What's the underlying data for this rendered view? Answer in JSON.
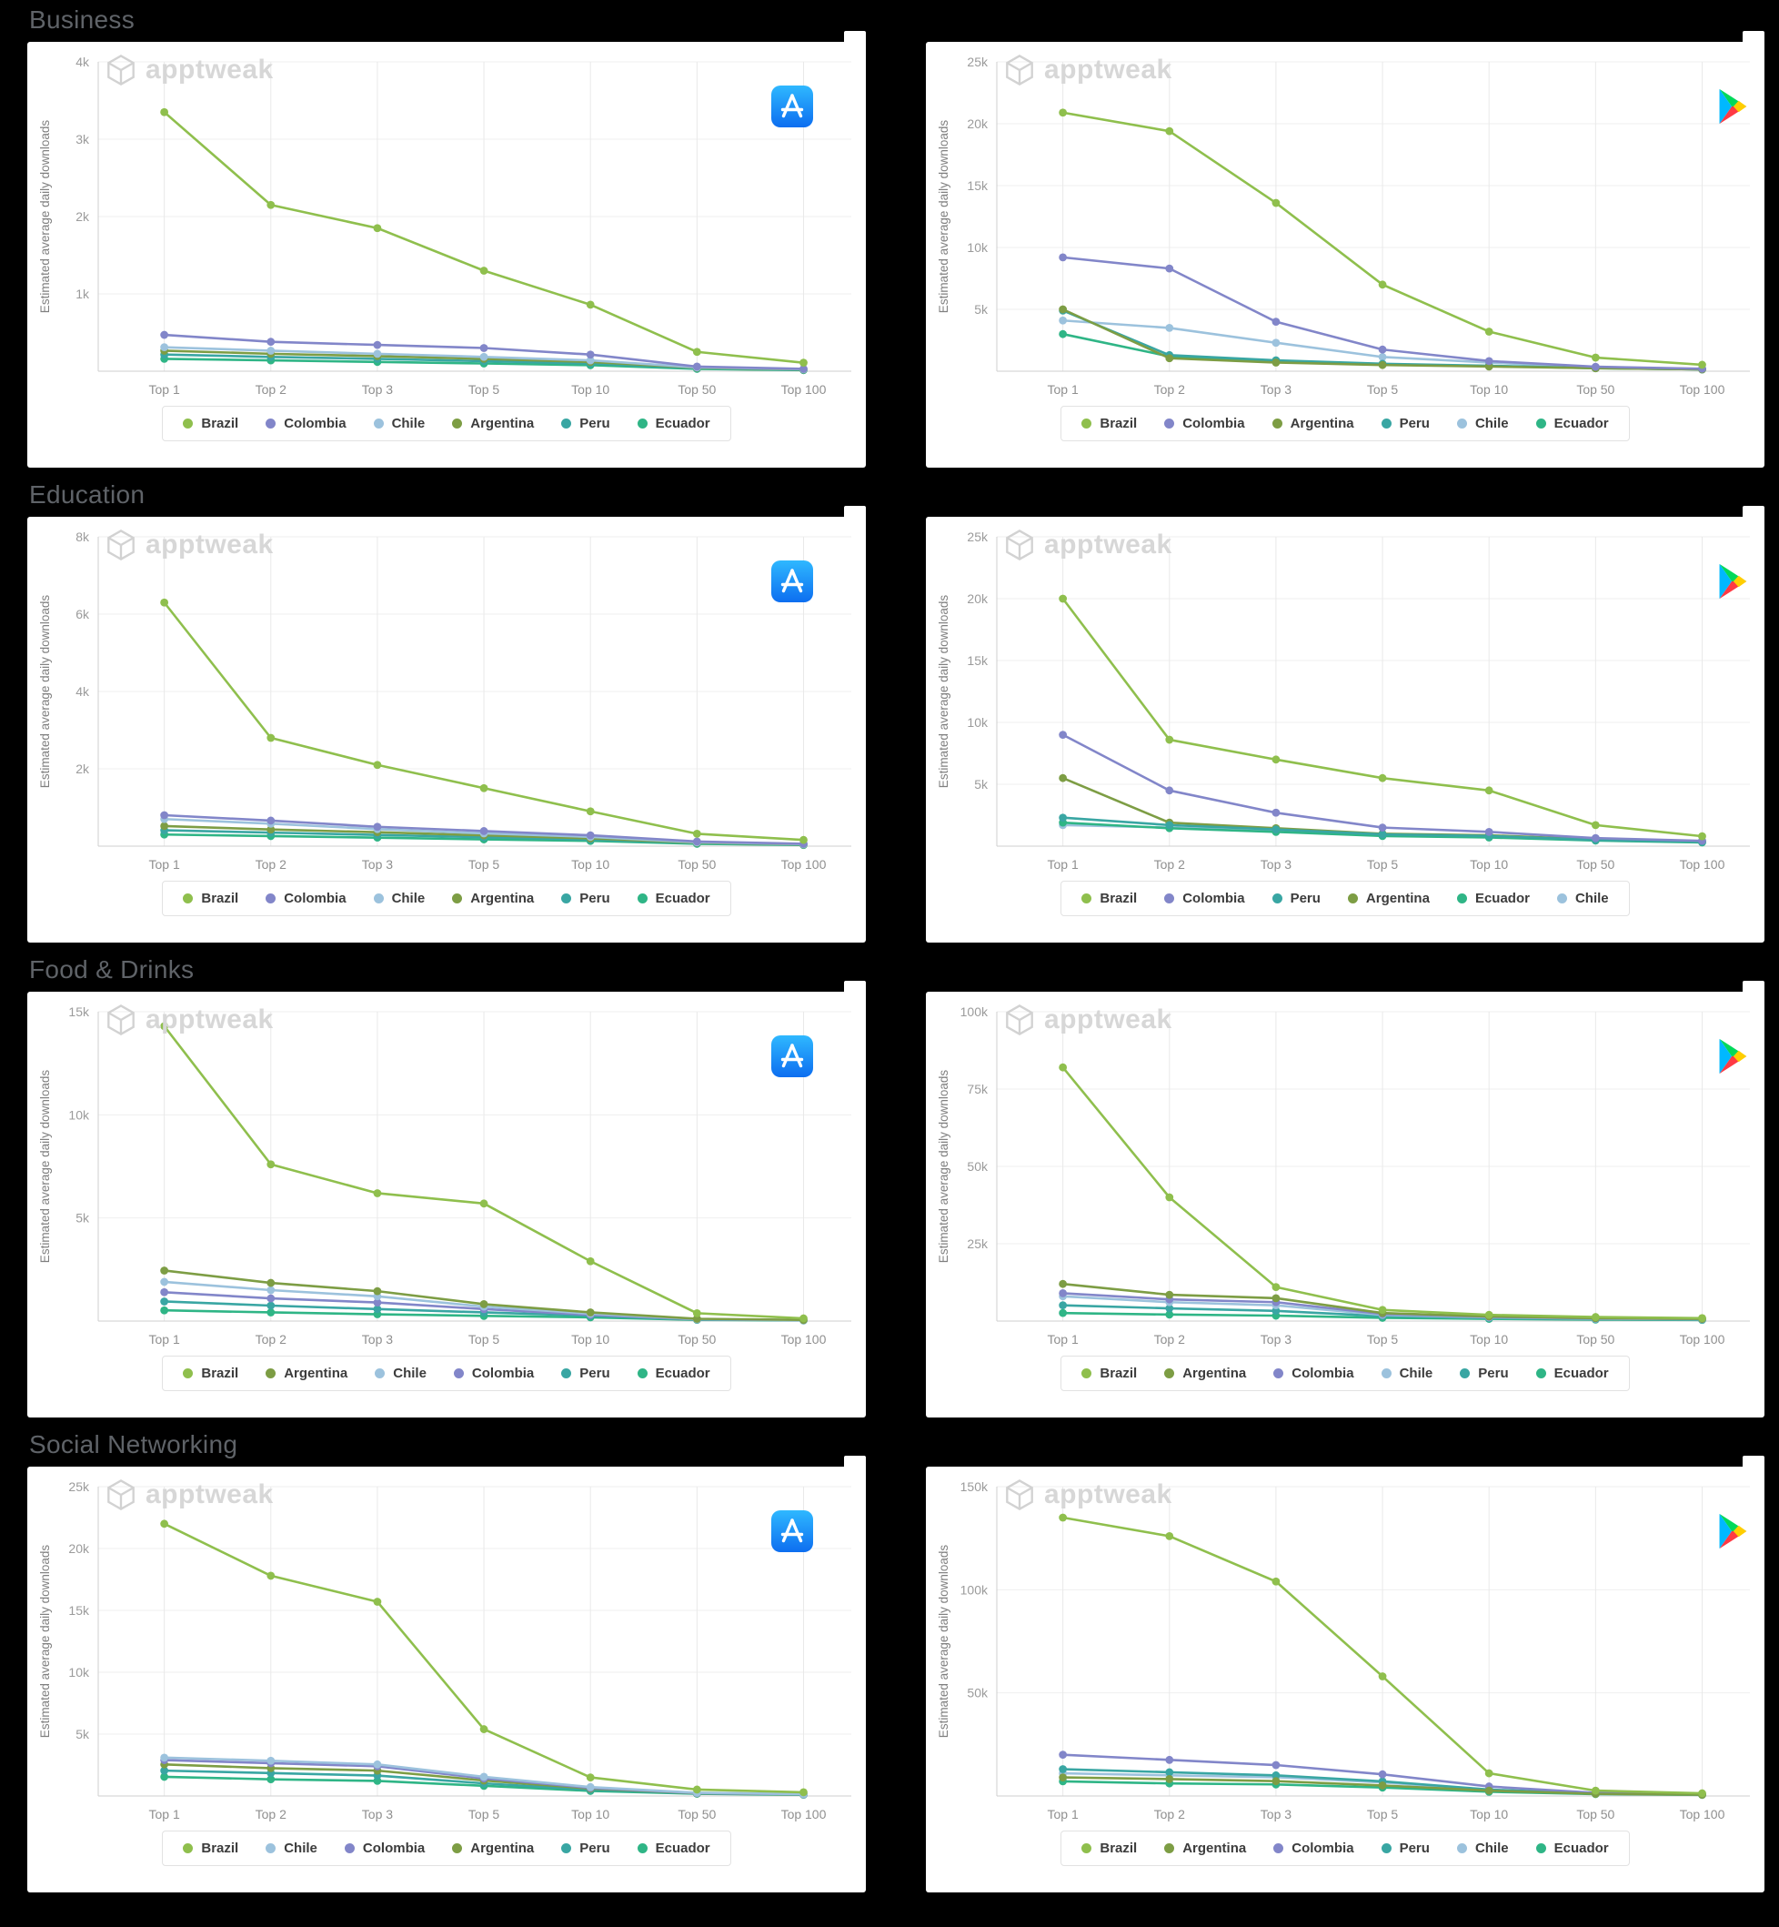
{
  "watermark": "apptweak",
  "ylabel": "Estimated average daily downloads",
  "categories": [
    "Top 1",
    "Top 2",
    "Top 3",
    "Top 5",
    "Top 10",
    "Top 50",
    "Top 100"
  ],
  "colors": {
    "Brazil": "#8fbf4d",
    "Colombia": "#8286c9",
    "Chile": "#9cc2dd",
    "Argentina": "#7d9d44",
    "Peru": "#39a6a3",
    "Ecuador": "#2fb586"
  },
  "sections": [
    {
      "title": "Business",
      "chart_indexes": [
        0,
        1
      ]
    },
    {
      "title": "Education",
      "chart_indexes": [
        2,
        3
      ]
    },
    {
      "title": "Food & Drinks",
      "chart_indexes": [
        4,
        5
      ]
    },
    {
      "title": "Social Networking",
      "chart_indexes": [
        6,
        7
      ]
    }
  ],
  "chart_data": [
    {
      "type": "line",
      "section": "Business",
      "store": "App Store",
      "title": "",
      "xlabel": "",
      "ylabel": "Estimated average daily downloads",
      "categories": [
        "Top 1",
        "Top 2",
        "Top 3",
        "Top 5",
        "Top 10",
        "Top 50",
        "Top 100"
      ],
      "ylim": [
        0,
        4000
      ],
      "ytick_values": [
        1000,
        2000,
        3000,
        4000
      ],
      "ytick_labels": [
        "1k",
        "2k",
        "3k",
        "4k"
      ],
      "grid": true,
      "legend_position": "bottom",
      "legend": [
        "Brazil",
        "Colombia",
        "Chile",
        "Argentina",
        "Peru",
        "Ecuador"
      ],
      "series": [
        {
          "name": "Brazil",
          "values": [
            3350,
            2150,
            1850,
            1300,
            860,
            250,
            110
          ]
        },
        {
          "name": "Colombia",
          "values": [
            470,
            380,
            340,
            300,
            215,
            60,
            30
          ]
        },
        {
          "name": "Chile",
          "values": [
            310,
            265,
            225,
            185,
            140,
            50,
            25
          ]
        },
        {
          "name": "Argentina",
          "values": [
            265,
            225,
            195,
            160,
            120,
            45,
            22
          ]
        },
        {
          "name": "Peru",
          "values": [
            215,
            185,
            160,
            130,
            100,
            40,
            18
          ]
        },
        {
          "name": "Ecuador",
          "values": [
            160,
            140,
            120,
            100,
            78,
            30,
            14
          ]
        }
      ]
    },
    {
      "type": "line",
      "section": "Business",
      "store": "Google Play",
      "title": "",
      "xlabel": "",
      "ylabel": "Estimated average daily downloads",
      "categories": [
        "Top 1",
        "Top 2",
        "Top 3",
        "Top 5",
        "Top 10",
        "Top 50",
        "Top 100"
      ],
      "ylim": [
        0,
        25000
      ],
      "ytick_values": [
        5000,
        10000,
        15000,
        20000,
        25000
      ],
      "ytick_labels": [
        "5k",
        "10k",
        "15k",
        "20k",
        "25k"
      ],
      "grid": true,
      "legend_position": "bottom",
      "legend": [
        "Brazil",
        "Colombia",
        "Argentina",
        "Peru",
        "Chile",
        "Ecuador"
      ],
      "series": [
        {
          "name": "Brazil",
          "values": [
            20900,
            19400,
            13600,
            7000,
            3200,
            1100,
            520
          ]
        },
        {
          "name": "Colombia",
          "values": [
            9200,
            8300,
            4000,
            1750,
            820,
            360,
            200
          ]
        },
        {
          "name": "Argentina",
          "values": [
            5000,
            1050,
            700,
            500,
            380,
            240,
            150
          ]
        },
        {
          "name": "Peru",
          "values": [
            4900,
            1300,
            880,
            600,
            440,
            250,
            150
          ]
        },
        {
          "name": "Chile",
          "values": [
            4100,
            3500,
            2300,
            1150,
            700,
            300,
            180
          ]
        },
        {
          "name": "Ecuador",
          "values": [
            3000,
            1200,
            800,
            550,
            420,
            240,
            150
          ]
        }
      ]
    },
    {
      "type": "line",
      "section": "Education",
      "store": "App Store",
      "title": "",
      "xlabel": "",
      "ylabel": "Estimated average daily downloads",
      "categories": [
        "Top 1",
        "Top 2",
        "Top 3",
        "Top 5",
        "Top 10",
        "Top 50",
        "Top 100"
      ],
      "ylim": [
        0,
        8000
      ],
      "ytick_values": [
        2000,
        4000,
        6000,
        8000
      ],
      "ytick_labels": [
        "2k",
        "4k",
        "6k",
        "8k"
      ],
      "grid": true,
      "legend_position": "bottom",
      "legend": [
        "Brazil",
        "Colombia",
        "Chile",
        "Argentina",
        "Peru",
        "Ecuador"
      ],
      "series": [
        {
          "name": "Brazil",
          "values": [
            6300,
            2800,
            2100,
            1500,
            900,
            320,
            160
          ]
        },
        {
          "name": "Colombia",
          "values": [
            800,
            660,
            500,
            390,
            280,
            120,
            60
          ]
        },
        {
          "name": "Chile",
          "values": [
            700,
            580,
            440,
            330,
            240,
            100,
            50
          ]
        },
        {
          "name": "Argentina",
          "values": [
            520,
            430,
            360,
            280,
            200,
            90,
            45
          ]
        },
        {
          "name": "Peru",
          "values": [
            410,
            350,
            290,
            230,
            170,
            80,
            40
          ]
        },
        {
          "name": "Ecuador",
          "values": [
            300,
            260,
            220,
            175,
            135,
            60,
            30
          ]
        }
      ]
    },
    {
      "type": "line",
      "section": "Education",
      "store": "Google Play",
      "title": "",
      "xlabel": "",
      "ylabel": "Estimated average daily downloads",
      "categories": [
        "Top 1",
        "Top 2",
        "Top 3",
        "Top 5",
        "Top 10",
        "Top 50",
        "Top 100"
      ],
      "ylim": [
        0,
        25000
      ],
      "ytick_values": [
        5000,
        10000,
        15000,
        20000,
        25000
      ],
      "ytick_labels": [
        "5k",
        "10k",
        "15k",
        "20k",
        "25k"
      ],
      "grid": true,
      "legend_position": "bottom",
      "legend": [
        "Brazil",
        "Colombia",
        "Peru",
        "Argentina",
        "Ecuador",
        "Chile"
      ],
      "series": [
        {
          "name": "Brazil",
          "values": [
            20000,
            8600,
            7000,
            5500,
            4500,
            1700,
            800
          ]
        },
        {
          "name": "Colombia",
          "values": [
            9000,
            4500,
            2700,
            1500,
            1150,
            650,
            430
          ]
        },
        {
          "name": "Peru",
          "values": [
            2300,
            1700,
            1350,
            950,
            820,
            500,
            350
          ]
        },
        {
          "name": "Argentina",
          "values": [
            5500,
            1900,
            1450,
            1000,
            880,
            540,
            380
          ]
        },
        {
          "name": "Ecuador",
          "values": [
            1900,
            1450,
            1150,
            820,
            700,
            450,
            300
          ]
        },
        {
          "name": "Chile",
          "values": [
            1700,
            1500,
            1250,
            900,
            780,
            480,
            330
          ]
        }
      ]
    },
    {
      "type": "line",
      "section": "Food & Drinks",
      "store": "App Store",
      "title": "",
      "xlabel": "",
      "ylabel": "Estimated average daily downloads",
      "categories": [
        "Top 1",
        "Top 2",
        "Top 3",
        "Top 5",
        "Top 10",
        "Top 50",
        "Top 100"
      ],
      "ylim": [
        0,
        15000
      ],
      "ytick_values": [
        5000,
        10000,
        15000
      ],
      "ytick_labels": [
        "5k",
        "10k",
        "15k"
      ],
      "grid": true,
      "legend_position": "bottom",
      "legend": [
        "Brazil",
        "Argentina",
        "Chile",
        "Colombia",
        "Peru",
        "Ecuador"
      ],
      "series": [
        {
          "name": "Brazil",
          "values": [
            14300,
            7600,
            6200,
            5700,
            2900,
            380,
            130
          ]
        },
        {
          "name": "Argentina",
          "values": [
            2450,
            1850,
            1450,
            820,
            420,
            110,
            55
          ]
        },
        {
          "name": "Chile",
          "values": [
            1900,
            1500,
            1200,
            700,
            360,
            95,
            48
          ]
        },
        {
          "name": "Colombia",
          "values": [
            1400,
            1100,
            900,
            580,
            300,
            85,
            42
          ]
        },
        {
          "name": "Peru",
          "values": [
            950,
            750,
            580,
            420,
            260,
            75,
            38
          ]
        },
        {
          "name": "Ecuador",
          "values": [
            520,
            420,
            330,
            250,
            180,
            60,
            30
          ]
        }
      ]
    },
    {
      "type": "line",
      "section": "Food & Drinks",
      "store": "Google Play",
      "title": "",
      "xlabel": "",
      "ylabel": "Estimated average daily downloads",
      "categories": [
        "Top 1",
        "Top 2",
        "Top 3",
        "Top 5",
        "Top 10",
        "Top 50",
        "Top 100"
      ],
      "ylim": [
        0,
        100000
      ],
      "ytick_values": [
        25000,
        50000,
        75000,
        100000
      ],
      "ytick_labels": [
        "25k",
        "50k",
        "75k",
        "100k"
      ],
      "grid": true,
      "legend_position": "bottom",
      "legend": [
        "Brazil",
        "Argentina",
        "Colombia",
        "Chile",
        "Peru",
        "Ecuador"
      ],
      "series": [
        {
          "name": "Brazil",
          "values": [
            82000,
            40000,
            11000,
            3600,
            2000,
            1300,
            950
          ]
        },
        {
          "name": "Argentina",
          "values": [
            12000,
            8500,
            7400,
            2600,
            1500,
            950,
            720
          ]
        },
        {
          "name": "Colombia",
          "values": [
            9000,
            7000,
            6100,
            2300,
            1350,
            850,
            640
          ]
        },
        {
          "name": "Chile",
          "values": [
            8000,
            6100,
            5100,
            2000,
            1200,
            750,
            580
          ]
        },
        {
          "name": "Peru",
          "values": [
            5100,
            4100,
            3300,
            1600,
            1000,
            620,
            470
          ]
        },
        {
          "name": "Ecuador",
          "values": [
            2600,
            2100,
            1750,
            1050,
            720,
            470,
            360
          ]
        }
      ]
    },
    {
      "type": "line",
      "section": "Social Networking",
      "store": "App Store",
      "title": "",
      "xlabel": "",
      "ylabel": "Estimated average daily downloads",
      "categories": [
        "Top 1",
        "Top 2",
        "Top 3",
        "Top 5",
        "Top 10",
        "Top 50",
        "Top 100"
      ],
      "ylim": [
        0,
        25000
      ],
      "ytick_values": [
        5000,
        10000,
        15000,
        20000,
        25000
      ],
      "ytick_labels": [
        "5k",
        "10k",
        "15k",
        "20k",
        "25k"
      ],
      "grid": true,
      "legend_position": "bottom",
      "legend": [
        "Brazil",
        "Chile",
        "Colombia",
        "Argentina",
        "Peru",
        "Ecuador"
      ],
      "series": [
        {
          "name": "Brazil",
          "values": [
            22000,
            17800,
            15700,
            5400,
            1500,
            520,
            300
          ]
        },
        {
          "name": "Chile",
          "values": [
            3100,
            2850,
            2550,
            1550,
            720,
            260,
            150
          ]
        },
        {
          "name": "Colombia",
          "values": [
            2900,
            2650,
            2400,
            1420,
            660,
            240,
            140
          ]
        },
        {
          "name": "Argentina",
          "values": [
            2550,
            2250,
            2050,
            1250,
            600,
            220,
            130
          ]
        },
        {
          "name": "Peru",
          "values": [
            2050,
            1850,
            1650,
            1020,
            510,
            200,
            120
          ]
        },
        {
          "name": "Ecuador",
          "values": [
            1550,
            1350,
            1220,
            820,
            410,
            180,
            100
          ]
        }
      ]
    },
    {
      "type": "line",
      "section": "Social Networking",
      "store": "Google Play",
      "title": "",
      "xlabel": "",
      "ylabel": "Estimated average daily downloads",
      "categories": [
        "Top 1",
        "Top 2",
        "Top 3",
        "Top 5",
        "Top 10",
        "Top 50",
        "Top 100"
      ],
      "ylim": [
        0,
        150000
      ],
      "ytick_values": [
        50000,
        100000,
        150000
      ],
      "ytick_labels": [
        "50k",
        "100k",
        "150k"
      ],
      "grid": true,
      "legend_position": "bottom",
      "legend": [
        "Brazil",
        "Argentina",
        "Colombia",
        "Peru",
        "Chile",
        "Ecuador"
      ],
      "series": [
        {
          "name": "Brazil",
          "values": [
            135000,
            126000,
            104000,
            58000,
            11000,
            2600,
            1300
          ]
        },
        {
          "name": "Argentina",
          "values": [
            9000,
            8200,
            7200,
            5100,
            2600,
            1050,
            620
          ]
        },
        {
          "name": "Colombia",
          "values": [
            20000,
            17500,
            15000,
            10500,
            4600,
            1550,
            820
          ]
        },
        {
          "name": "Peru",
          "values": [
            13000,
            11500,
            10000,
            7100,
            3100,
            1250,
            700
          ]
        },
        {
          "name": "Chile",
          "values": [
            11000,
            10000,
            9100,
            6600,
            2850,
            1150,
            660
          ]
        },
        {
          "name": "Ecuador",
          "values": [
            7100,
            6100,
            5600,
            4100,
            2050,
            920,
            520
          ]
        }
      ]
    }
  ]
}
